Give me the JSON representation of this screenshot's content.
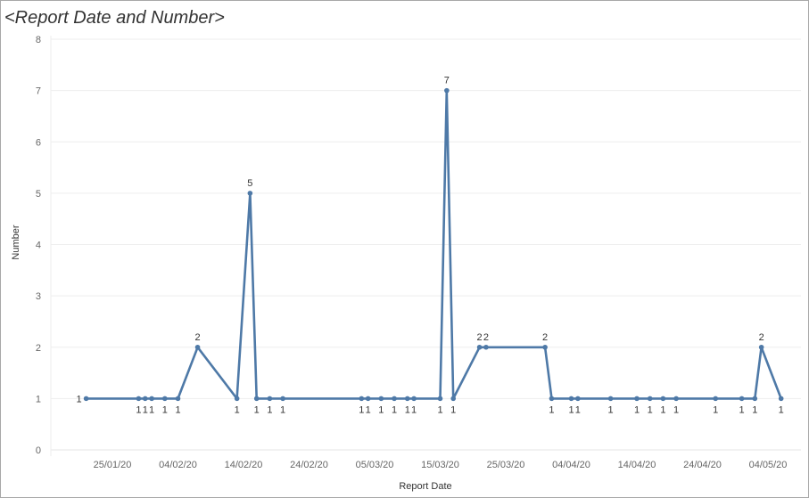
{
  "page": {
    "title": "<Report Date and Number>"
  },
  "chart_data": {
    "type": "line",
    "title": "<Report Date and Number>",
    "xlabel": "Report Date",
    "ylabel": "Number",
    "ylim": [
      0,
      8
    ],
    "y_ticks": [
      0,
      1,
      2,
      3,
      4,
      5,
      6,
      7,
      8
    ],
    "x_tick_labels": [
      "25/01/20",
      "04/02/20",
      "14/02/20",
      "24/02/20",
      "05/03/20",
      "15/03/20",
      "25/03/20",
      "04/04/20",
      "14/04/20",
      "24/04/20",
      "04/05/20"
    ],
    "grid": true,
    "color": "#4e79a7",
    "points": [
      {
        "x": "21/01/20",
        "y": 1
      },
      {
        "x": "29/01/20",
        "y": 1
      },
      {
        "x": "30/01/20",
        "y": 1
      },
      {
        "x": "31/01/20",
        "y": 1
      },
      {
        "x": "02/02/20",
        "y": 1
      },
      {
        "x": "04/02/20",
        "y": 1
      },
      {
        "x": "07/02/20",
        "y": 2
      },
      {
        "x": "13/02/20",
        "y": 1
      },
      {
        "x": "15/02/20",
        "y": 5
      },
      {
        "x": "16/02/20",
        "y": 1
      },
      {
        "x": "18/02/20",
        "y": 1
      },
      {
        "x": "20/02/20",
        "y": 1
      },
      {
        "x": "03/03/20",
        "y": 1
      },
      {
        "x": "04/03/20",
        "y": 1
      },
      {
        "x": "06/03/20",
        "y": 1
      },
      {
        "x": "08/03/20",
        "y": 1
      },
      {
        "x": "10/03/20",
        "y": 1
      },
      {
        "x": "11/03/20",
        "y": 1
      },
      {
        "x": "15/03/20",
        "y": 1
      },
      {
        "x": "16/03/20",
        "y": 7
      },
      {
        "x": "17/03/20",
        "y": 1
      },
      {
        "x": "21/03/20",
        "y": 2
      },
      {
        "x": "22/03/20",
        "y": 2
      },
      {
        "x": "31/03/20",
        "y": 2
      },
      {
        "x": "01/04/20",
        "y": 1
      },
      {
        "x": "04/04/20",
        "y": 1
      },
      {
        "x": "05/04/20",
        "y": 1
      },
      {
        "x": "10/04/20",
        "y": 1
      },
      {
        "x": "14/04/20",
        "y": 1
      },
      {
        "x": "16/04/20",
        "y": 1
      },
      {
        "x": "18/04/20",
        "y": 1
      },
      {
        "x": "20/04/20",
        "y": 1
      },
      {
        "x": "26/04/20",
        "y": 1
      },
      {
        "x": "30/04/20",
        "y": 1
      },
      {
        "x": "02/05/20",
        "y": 1
      },
      {
        "x": "03/05/20",
        "y": 2
      },
      {
        "x": "06/05/20",
        "y": 1
      }
    ]
  }
}
